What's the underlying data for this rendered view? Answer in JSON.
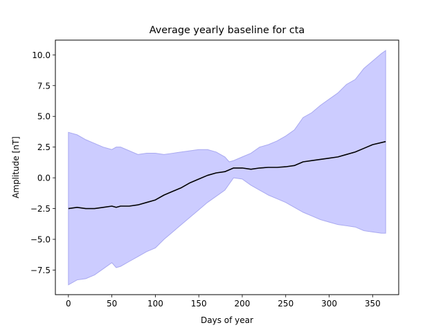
{
  "chart_data": {
    "type": "line",
    "title": "Average yearly baseline for cta",
    "xlabel": "Days of year",
    "ylabel": "Amplitude [nT]",
    "xlim": [
      -15,
      380
    ],
    "ylim": [
      -9.5,
      11.2
    ],
    "xticks": [
      0,
      50,
      100,
      150,
      200,
      250,
      300,
      350
    ],
    "xtick_labels": [
      "0",
      "50",
      "100",
      "150",
      "200",
      "250",
      "300",
      "350"
    ],
    "yticks": [
      -7.5,
      -5.0,
      -2.5,
      0.0,
      2.5,
      5.0,
      7.5,
      10.0
    ],
    "ytick_labels": [
      "−7.5",
      "−5.0",
      "−2.5",
      "0.0",
      "2.5",
      "5.0",
      "7.5",
      "10.0"
    ],
    "grid": false,
    "colors": {
      "mean_line": "#000000",
      "band_fill": "#ccccff",
      "band_edge": "#a8a8f0"
    },
    "series": [
      {
        "kind": "line",
        "x": [
          0,
          10,
          20,
          30,
          40,
          50,
          55,
          60,
          70,
          80,
          90,
          100,
          110,
          120,
          130,
          140,
          150,
          160,
          170,
          180,
          190,
          200,
          210,
          220,
          230,
          240,
          250,
          260,
          270,
          280,
          290,
          300,
          310,
          320,
          330,
          340,
          350,
          365
        ],
        "values": [
          -2.5,
          -2.4,
          -2.5,
          -2.5,
          -2.4,
          -2.3,
          -2.4,
          -2.3,
          -2.3,
          -2.2,
          -2.0,
          -1.8,
          -1.4,
          -1.1,
          -0.8,
          -0.4,
          -0.1,
          0.2,
          0.4,
          0.5,
          0.8,
          0.8,
          0.7,
          0.8,
          0.85,
          0.85,
          0.9,
          1.0,
          1.3,
          1.4,
          1.5,
          1.6,
          1.7,
          1.9,
          2.1,
          2.4,
          2.7,
          2.95
        ]
      },
      {
        "kind": "band_upper",
        "x": [
          0,
          10,
          20,
          30,
          40,
          50,
          55,
          60,
          70,
          80,
          90,
          100,
          110,
          120,
          130,
          140,
          150,
          160,
          170,
          180,
          185,
          190,
          200,
          210,
          220,
          230,
          240,
          250,
          260,
          270,
          280,
          290,
          300,
          310,
          320,
          330,
          340,
          350,
          360,
          365
        ],
        "values": [
          3.7,
          3.5,
          3.1,
          2.8,
          2.5,
          2.3,
          2.5,
          2.5,
          2.2,
          1.9,
          2.0,
          2.0,
          1.9,
          2.0,
          2.1,
          2.2,
          2.3,
          2.3,
          2.1,
          1.7,
          1.3,
          1.4,
          1.7,
          2.0,
          2.5,
          2.7,
          3.0,
          3.4,
          3.9,
          4.9,
          5.3,
          5.9,
          6.4,
          6.9,
          7.6,
          8.0,
          8.9,
          9.5,
          10.1,
          10.35
        ]
      },
      {
        "kind": "band_lower",
        "x": [
          0,
          10,
          20,
          30,
          40,
          50,
          55,
          60,
          70,
          80,
          90,
          100,
          110,
          120,
          130,
          140,
          150,
          160,
          170,
          180,
          190,
          200,
          210,
          220,
          230,
          240,
          250,
          260,
          270,
          280,
          290,
          300,
          310,
          320,
          330,
          340,
          350,
          360,
          365
        ],
        "values": [
          -8.7,
          -8.3,
          -8.2,
          -7.9,
          -7.4,
          -6.9,
          -7.3,
          -7.2,
          -6.8,
          -6.4,
          -6.0,
          -5.7,
          -5.0,
          -4.4,
          -3.8,
          -3.2,
          -2.6,
          -2.0,
          -1.5,
          -1.0,
          0.0,
          -0.1,
          -0.6,
          -1.0,
          -1.4,
          -1.7,
          -2.0,
          -2.4,
          -2.8,
          -3.1,
          -3.4,
          -3.6,
          -3.8,
          -3.9,
          -4.0,
          -4.3,
          -4.4,
          -4.5,
          -4.5
        ]
      }
    ]
  }
}
